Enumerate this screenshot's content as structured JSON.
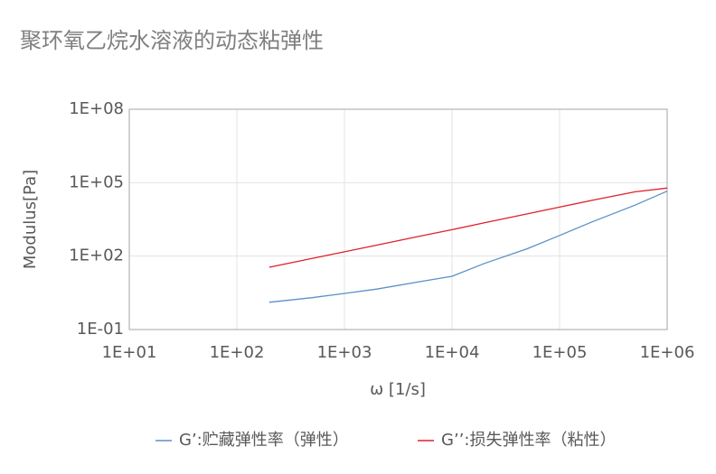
{
  "chart_data": {
    "type": "line",
    "title": "聚环氧乙烷水溶液的动态粘弹性",
    "x_label": "ω [1/s]",
    "y_label": "Modulus[Pa]",
    "x": [
      200,
      500,
      1000,
      2000,
      5000,
      10000,
      20000,
      50000,
      100000,
      200000,
      500000,
      1000000
    ],
    "series": [
      {
        "name": "G’:贮藏弹性率（弹性）",
        "color": "#5b8fc9",
        "values": [
          1.3,
          2,
          3,
          4.5,
          9,
          15,
          50,
          200,
          700,
          2500,
          12000,
          45000
        ]
      },
      {
        "name": "G’’:损失弹性率（粘性）",
        "color": "#e0202a",
        "values": [
          35,
          80,
          150,
          280,
          650,
          1200,
          2300,
          5300,
          10000,
          19000,
          42000,
          60000
        ]
      }
    ],
    "xlim": [
      10,
      1000000
    ],
    "ylim": [
      0.1,
      100000000
    ],
    "x_log": true,
    "y_log": true,
    "grid": true,
    "xticks": [
      {
        "value": 10,
        "label": "1E+01"
      },
      {
        "value": 100,
        "label": "1E+02"
      },
      {
        "value": 1000,
        "label": "1E+03"
      },
      {
        "value": 10000,
        "label": "1E+04"
      },
      {
        "value": 100000,
        "label": "1E+05"
      },
      {
        "value": 1000000,
        "label": "1E+06"
      }
    ],
    "yticks": [
      {
        "value": 0.1,
        "label": "1E-01"
      },
      {
        "value": 100,
        "label": "1E+02"
      },
      {
        "value": 100000,
        "label": "1E+05"
      },
      {
        "value": 100000000,
        "label": "1E+08"
      }
    ],
    "legend": "bottom"
  }
}
